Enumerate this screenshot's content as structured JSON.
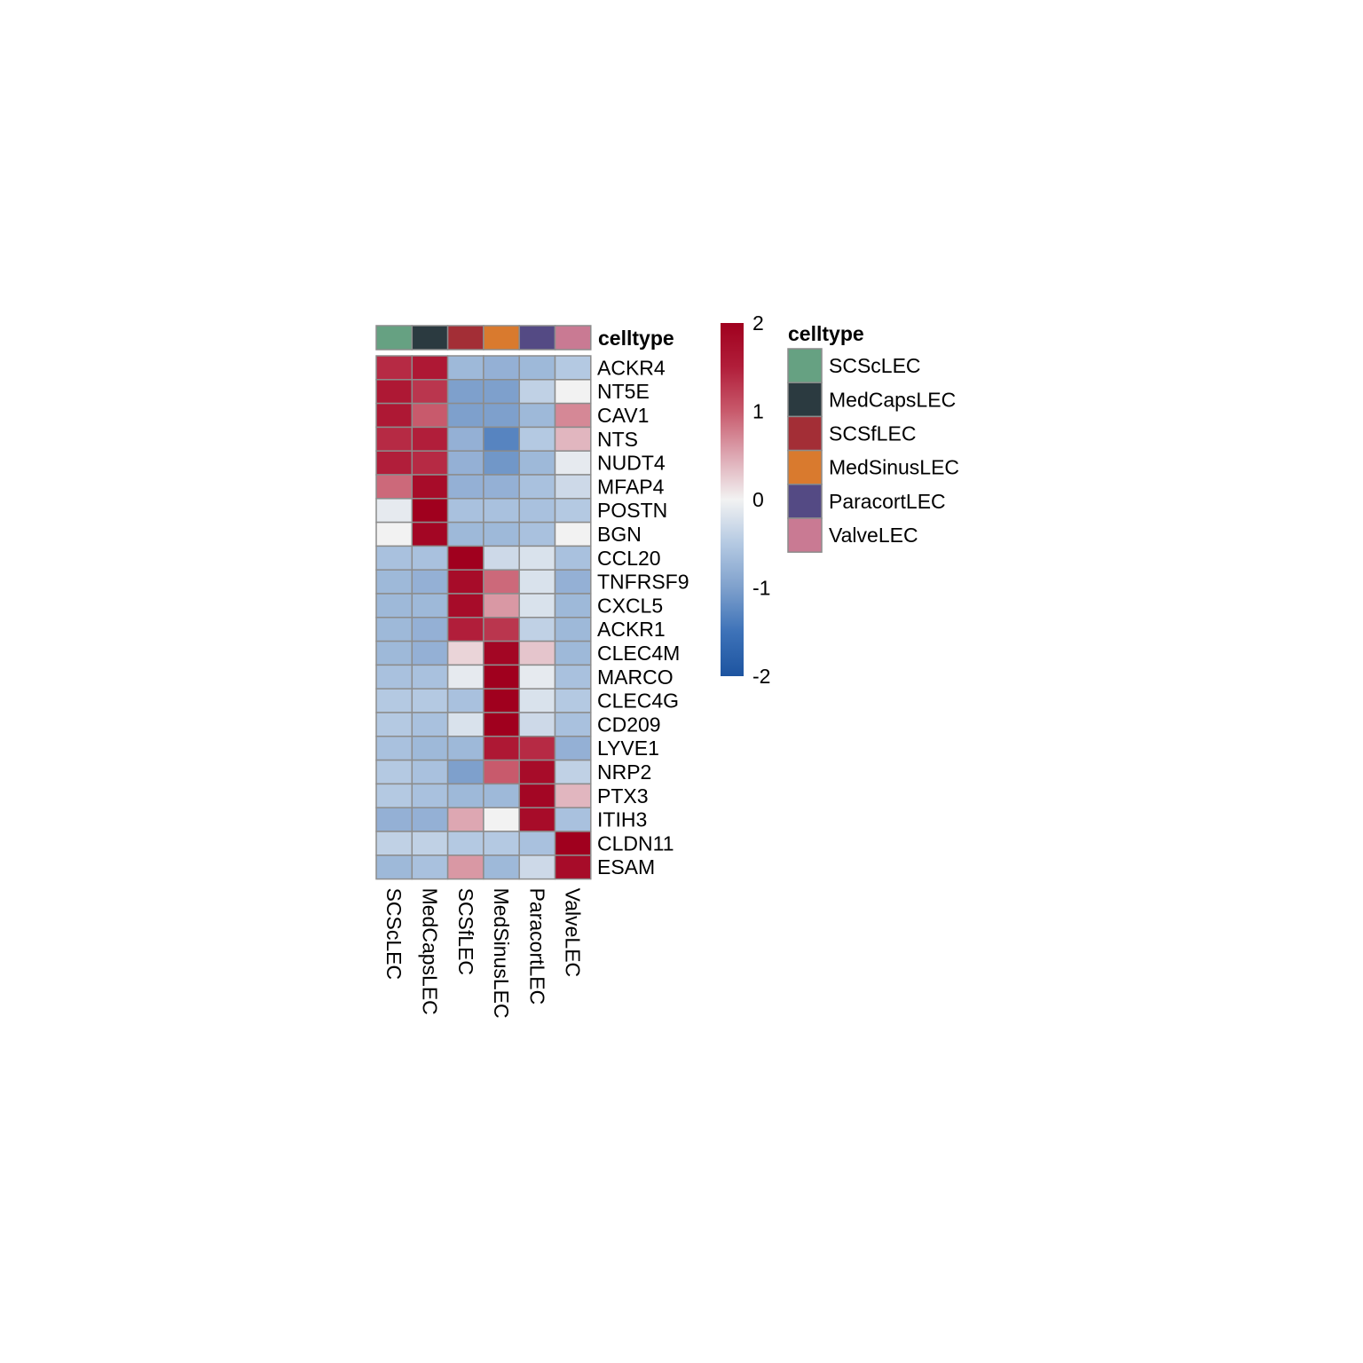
{
  "chart_data": {
    "type": "heatmap",
    "annotation_label": "celltype",
    "legend_title": "celltype",
    "columns": [
      "SCScLEC",
      "MedCapsLEC",
      "SCSfLEC",
      "MedSinusLEC",
      "ParacortLEC",
      "ValveLEC"
    ],
    "column_colors": [
      "#66A182",
      "#2B3A40",
      "#A32E36",
      "#D97A2E",
      "#544A84",
      "#C97A93"
    ],
    "rows": [
      "ACKR4",
      "NT5E",
      "CAV1",
      "NTS",
      "NUDT4",
      "MFAP4",
      "POSTN",
      "BGN",
      "CCL20",
      "TNFRSF9",
      "CXCL5",
      "ACKR1",
      "CLEC4M",
      "MARCO",
      "CLEC4G",
      "CD209",
      "LYVE1",
      "NRP2",
      "PTX3",
      "ITIH3",
      "CLDN11",
      "ESAM"
    ],
    "values": [
      [
        1.4,
        1.6,
        -0.7,
        -0.8,
        -0.7,
        -0.5
      ],
      [
        1.6,
        1.3,
        -1.0,
        -1.0,
        -0.4,
        0.0
      ],
      [
        1.6,
        1.0,
        -1.0,
        -1.0,
        -0.7,
        0.7
      ],
      [
        1.4,
        1.5,
        -0.8,
        -1.3,
        -0.5,
        0.4
      ],
      [
        1.5,
        1.4,
        -0.8,
        -1.1,
        -0.7,
        -0.1
      ],
      [
        0.9,
        1.8,
        -0.8,
        -0.8,
        -0.6,
        -0.3
      ],
      [
        -0.1,
        2.0,
        -0.6,
        -0.6,
        -0.6,
        -0.5
      ],
      [
        0.0,
        1.9,
        -0.7,
        -0.7,
        -0.6,
        0.0
      ],
      [
        -0.6,
        -0.6,
        2.0,
        -0.3,
        -0.2,
        -0.6
      ],
      [
        -0.7,
        -0.8,
        1.8,
        0.9,
        -0.2,
        -0.8
      ],
      [
        -0.7,
        -0.7,
        1.8,
        0.6,
        -0.2,
        -0.7
      ],
      [
        -0.7,
        -0.8,
        1.5,
        1.3,
        -0.4,
        -0.7
      ],
      [
        -0.7,
        -0.8,
        0.2,
        1.9,
        0.3,
        -0.7
      ],
      [
        -0.6,
        -0.6,
        -0.1,
        2.0,
        -0.1,
        -0.6
      ],
      [
        -0.5,
        -0.5,
        -0.6,
        2.0,
        -0.2,
        -0.5
      ],
      [
        -0.5,
        -0.6,
        -0.2,
        2.0,
        -0.3,
        -0.6
      ],
      [
        -0.6,
        -0.7,
        -0.7,
        1.6,
        1.4,
        -0.8
      ],
      [
        -0.5,
        -0.6,
        -1.0,
        1.0,
        1.8,
        -0.4
      ],
      [
        -0.5,
        -0.6,
        -0.7,
        -0.7,
        1.9,
        0.4
      ],
      [
        -0.8,
        -0.8,
        0.5,
        0.0,
        1.8,
        -0.6
      ],
      [
        -0.4,
        -0.4,
        -0.5,
        -0.5,
        -0.6,
        2.0
      ],
      [
        -0.7,
        -0.6,
        0.6,
        -0.7,
        -0.3,
        1.8
      ]
    ],
    "color_scale": {
      "min": -2,
      "max": 2,
      "ticks": [
        2,
        1,
        0,
        -1,
        -2
      ],
      "colors": [
        "#1D54A0",
        "#3D72B8",
        "#7EA0CC",
        "#B4C9E2",
        "#F2F2F2",
        "#DDA7B2",
        "#C85A6C",
        "#B11E3A",
        "#A0001E"
      ]
    }
  }
}
